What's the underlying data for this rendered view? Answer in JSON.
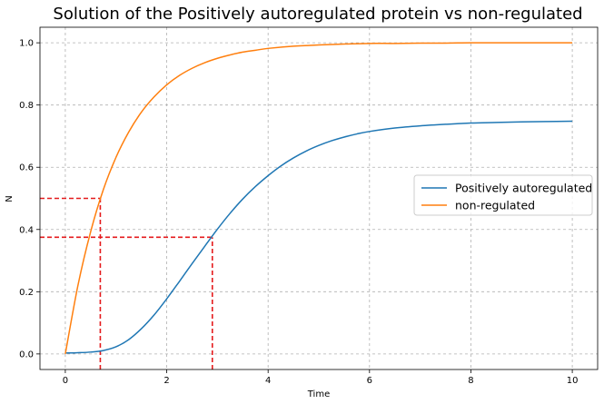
{
  "chart_data": {
    "type": "line",
    "title": "Solution of the Positively autoregulated protein vs non-regulated",
    "xlabel": "Time",
    "ylabel": "N",
    "xlim": [
      -0.5,
      10.5
    ],
    "ylim": [
      -0.05,
      1.05
    ],
    "xticks": [
      0,
      2,
      4,
      6,
      8,
      10
    ],
    "yticks": [
      0.0,
      0.2,
      0.4,
      0.6,
      0.8,
      1.0
    ],
    "xtick_labels": [
      "0",
      "2",
      "4",
      "6",
      "8",
      "10"
    ],
    "ytick_labels": [
      "0.0",
      "0.2",
      "0.4",
      "0.6",
      "0.8",
      "1.0"
    ],
    "grid": true,
    "legend_position": "center-right",
    "series": [
      {
        "name": "Positively autoregulated",
        "color": "#1f77b4",
        "x": [
          0,
          0.25,
          0.5,
          0.75,
          1.0,
          1.25,
          1.5,
          1.75,
          2.0,
          2.25,
          2.5,
          2.75,
          3.0,
          3.25,
          3.5,
          3.75,
          4.0,
          4.25,
          4.5,
          4.75,
          5.0,
          5.25,
          5.5,
          5.75,
          6.0,
          6.5,
          7.0,
          7.5,
          8.0,
          8.5,
          9.0,
          9.5,
          10.0
        ],
        "y": [
          0.003,
          0.004,
          0.006,
          0.011,
          0.023,
          0.046,
          0.081,
          0.125,
          0.177,
          0.233,
          0.29,
          0.346,
          0.401,
          0.452,
          0.498,
          0.538,
          0.573,
          0.604,
          0.63,
          0.652,
          0.67,
          0.685,
          0.697,
          0.707,
          0.715,
          0.726,
          0.733,
          0.738,
          0.742,
          0.744,
          0.746,
          0.747,
          0.748
        ]
      },
      {
        "name": "non-regulated",
        "color": "#ff7f0e",
        "x": [
          0,
          0.25,
          0.5,
          0.75,
          1.0,
          1.25,
          1.5,
          1.75,
          2.0,
          2.25,
          2.5,
          2.75,
          3.0,
          3.25,
          3.5,
          3.75,
          4.0,
          4.5,
          5.0,
          5.5,
          6.0,
          6.5,
          7.0,
          7.5,
          8.0,
          8.5,
          9.0,
          9.5,
          10.0
        ],
        "y": [
          0.0,
          0.221,
          0.393,
          0.528,
          0.632,
          0.713,
          0.777,
          0.826,
          0.865,
          0.895,
          0.918,
          0.936,
          0.95,
          0.961,
          0.97,
          0.976,
          0.982,
          0.989,
          0.993,
          0.996,
          0.998,
          0.998,
          0.999,
          0.999,
          1.0,
          1.0,
          1.0,
          1.0,
          1.0
        ]
      }
    ],
    "reference_lines": [
      {
        "color": "#e41a1c",
        "x": 0.69,
        "y": 0.5
      },
      {
        "color": "#e41a1c",
        "x": 2.9,
        "y": 0.375
      }
    ]
  }
}
